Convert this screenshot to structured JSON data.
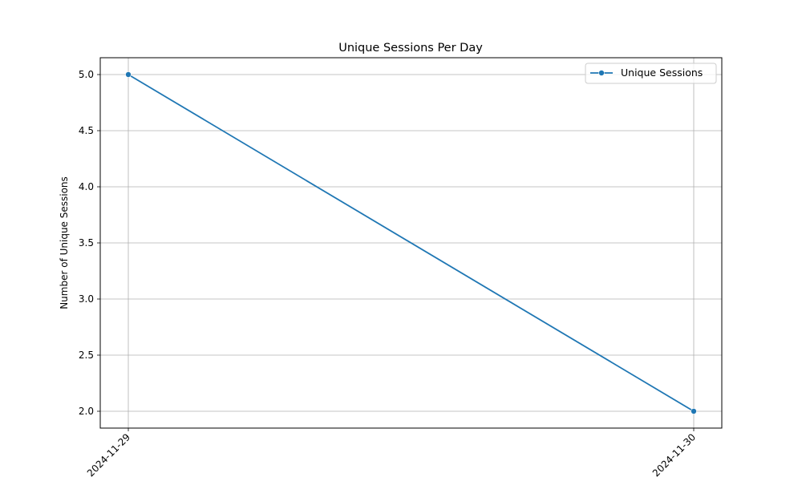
{
  "chart_data": {
    "type": "line",
    "title": "Unique Sessions Per Day",
    "xlabel": "",
    "ylabel": "Number of Unique Sessions",
    "categories": [
      "2024-11-29",
      "2024-11-30"
    ],
    "ylim": [
      1.85,
      5.15
    ],
    "yticks": [
      "2.0",
      "2.5",
      "3.0",
      "3.5",
      "4.0",
      "4.5",
      "5.0"
    ],
    "grid": true,
    "legend_position": "top-right",
    "series": [
      {
        "name": "Unique Sessions",
        "values": [
          5,
          2
        ],
        "color": "#1f77b4",
        "marker": "circle"
      }
    ]
  }
}
